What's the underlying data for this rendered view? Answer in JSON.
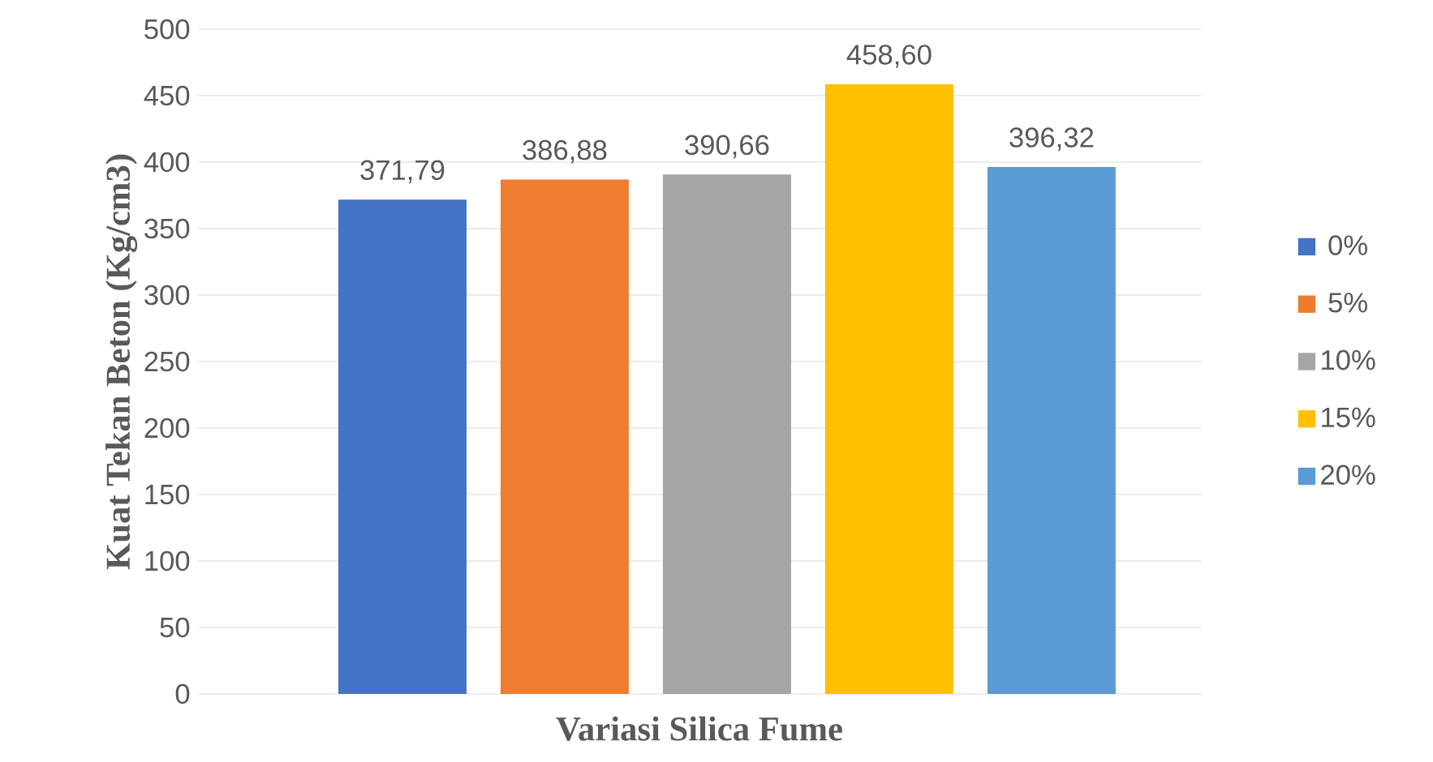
{
  "chart_data": {
    "type": "bar",
    "xlabel": "Variasi Silica Fume",
    "ylabel": "Kuat Tekan Beton (Kg/cm3)",
    "categories": [
      null
    ],
    "series": [
      {
        "name": "0%",
        "color": "#4472c4",
        "values": [
          371.79
        ],
        "value_labels": [
          "371,79"
        ]
      },
      {
        "name": "5%",
        "color": "#ed7d31",
        "values": [
          386.88
        ],
        "value_labels": [
          "386,88"
        ]
      },
      {
        "name": "10%",
        "color": "#a5a5a5",
        "values": [
          390.66
        ],
        "value_labels": [
          "390,66"
        ]
      },
      {
        "name": "15%",
        "color": "#ffc000",
        "values": [
          458.6
        ],
        "value_labels": [
          "458,60"
        ]
      },
      {
        "name": "20%",
        "color": "#5b9bd5",
        "values": [
          396.32
        ],
        "value_labels": [
          "396,32"
        ]
      }
    ],
    "ylim": [
      0,
      500
    ],
    "yticks": [
      0,
      50,
      100,
      150,
      200,
      250,
      300,
      350,
      400,
      450,
      500
    ],
    "grid": "y",
    "legend": "right"
  }
}
